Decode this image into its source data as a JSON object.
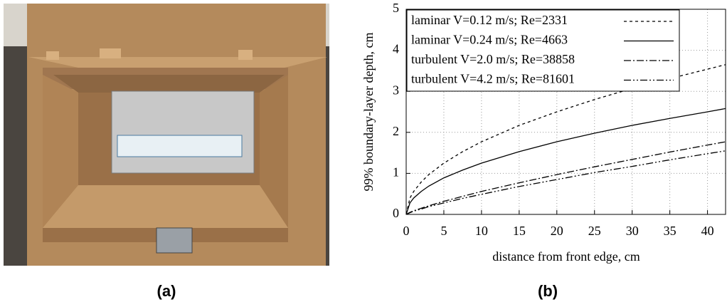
{
  "figure": {
    "panel_labels": [
      "(a)",
      "(b)"
    ]
  },
  "chart_data": {
    "type": "line",
    "xlabel": "distance from front edge, cm",
    "ylabel": "99% boundary-layer depth, cm",
    "x": [
      0,
      0.5,
      1,
      2,
      3,
      5,
      7.5,
      10,
      15,
      20,
      25,
      30,
      35,
      40,
      42.4
    ],
    "series": [
      {
        "name": "laminar V=0.12 m/s; Re=2331",
        "color": "#000000",
        "dash": "4,4",
        "values": [
          0,
          0.4,
          0.56,
          0.79,
          0.97,
          1.25,
          1.53,
          1.77,
          2.17,
          2.5,
          2.8,
          3.07,
          3.31,
          3.54,
          3.65
        ]
      },
      {
        "name": "laminar V=0.24 m/s; Re=4663",
        "color": "#000000",
        "dash": "none",
        "values": [
          0,
          0.28,
          0.4,
          0.56,
          0.69,
          0.89,
          1.08,
          1.25,
          1.53,
          1.77,
          1.98,
          2.17,
          2.34,
          2.5,
          2.58
        ]
      },
      {
        "name": "turbulent V=2.0 m/s; Re=38858",
        "color": "#000000",
        "dash": "10,3,2,3",
        "values": [
          0,
          0.05,
          0.09,
          0.15,
          0.21,
          0.32,
          0.44,
          0.56,
          0.77,
          0.97,
          1.16,
          1.34,
          1.52,
          1.69,
          1.77
        ]
      },
      {
        "name": "turbulent V=4.2 m/s; Re=81601",
        "color": "#000000",
        "dash": "10,3,2,3,2,3",
        "values": [
          0,
          0.04,
          0.08,
          0.13,
          0.19,
          0.28,
          0.39,
          0.49,
          0.68,
          0.85,
          1.02,
          1.17,
          1.33,
          1.48,
          1.55
        ]
      }
    ],
    "xlim": [
      0,
      42.4
    ],
    "ylim": [
      0,
      5
    ],
    "xticks": [
      0,
      5,
      10,
      15,
      20,
      25,
      30,
      35,
      40
    ],
    "yticks": [
      0,
      1,
      2,
      3,
      4,
      5
    ],
    "grid": true,
    "legend": "upper-left"
  }
}
